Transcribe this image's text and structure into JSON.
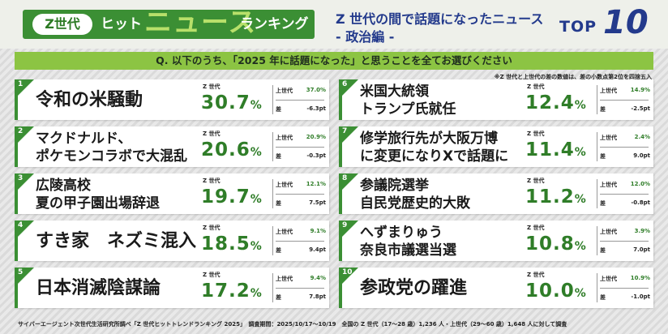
{
  "header": {
    "pill": "Z世代",
    "hit": "ヒット",
    "news": "ニュース",
    "ranking": "ランキング",
    "subtitle1": "Z 世代の間で話題になったニュース",
    "subtitle2": "- 政治編 -",
    "top_label": "TOP",
    "top_num": "10"
  },
  "question": "Q. 以下のうち、「2025 年に話題になった」と思うことを全てお選びください",
  "note": "※Z 世代と上世代の差の数値は、差の小数点第2位を四捨五入",
  "labels": {
    "z": "Z 世代",
    "upper": "上世代",
    "diff": "差"
  },
  "items": [
    {
      "rank": "1",
      "line1": "令和の米騒動",
      "line2": "",
      "z": "30.7",
      "upper": "37.0%",
      "diff": "-6.3pt"
    },
    {
      "rank": "2",
      "line1": "マクドナルド、",
      "line2": "ポケモンコラボで大混乱",
      "z": "20.6",
      "upper": "20.9%",
      "diff": "-0.3pt"
    },
    {
      "rank": "3",
      "line1": "広陵高校",
      "line2": "夏の甲子園出場辞退",
      "z": "19.7",
      "upper": "12.1%",
      "diff": "7.5pt"
    },
    {
      "rank": "4",
      "line1": "すき家　ネズミ混入",
      "line2": "",
      "z": "18.5",
      "upper": "9.1%",
      "diff": "9.4pt"
    },
    {
      "rank": "5",
      "line1": "日本消滅陰謀論",
      "line2": "",
      "z": "17.2",
      "upper": "9.4%",
      "diff": "7.8pt"
    },
    {
      "rank": "6",
      "line1": "米国大統領",
      "line2": "トランプ氏就任",
      "z": "12.4",
      "upper": "14.9%",
      "diff": "-2.5pt"
    },
    {
      "rank": "7",
      "line1": "修学旅行先が大阪万博",
      "line2": "に変更になりXで話題に",
      "z": "11.4",
      "upper": "2.4%",
      "diff": "9.0pt"
    },
    {
      "rank": "8",
      "line1": "参議院選挙",
      "line2": "自民党歴史的大敗",
      "z": "11.2",
      "upper": "12.0%",
      "diff": "-0.8pt"
    },
    {
      "rank": "9",
      "line1": "へずまりゅう",
      "line2": "奈良市議選当選",
      "z": "10.8",
      "upper": "3.9%",
      "diff": "7.0pt"
    },
    {
      "rank": "10",
      "line1": "参政党の躍進",
      "line2": "",
      "z": "10.0",
      "upper": "10.9%",
      "diff": "-1.0pt"
    }
  ],
  "footer": "サイバーエージェント次世代生活研究所調べ「Z 世代ヒットトレンドランキング 2025」　調査期間：2025/10/17〜10/19　全国の Z 世代（17〜28 歳）1,236 人・上世代（29〜60 歳）1,648 人に対して調査",
  "colors": {
    "green": "#3b8f34",
    "lime": "#8cc443",
    "navy": "#233a8c",
    "pct_green": "#2f7d28"
  }
}
